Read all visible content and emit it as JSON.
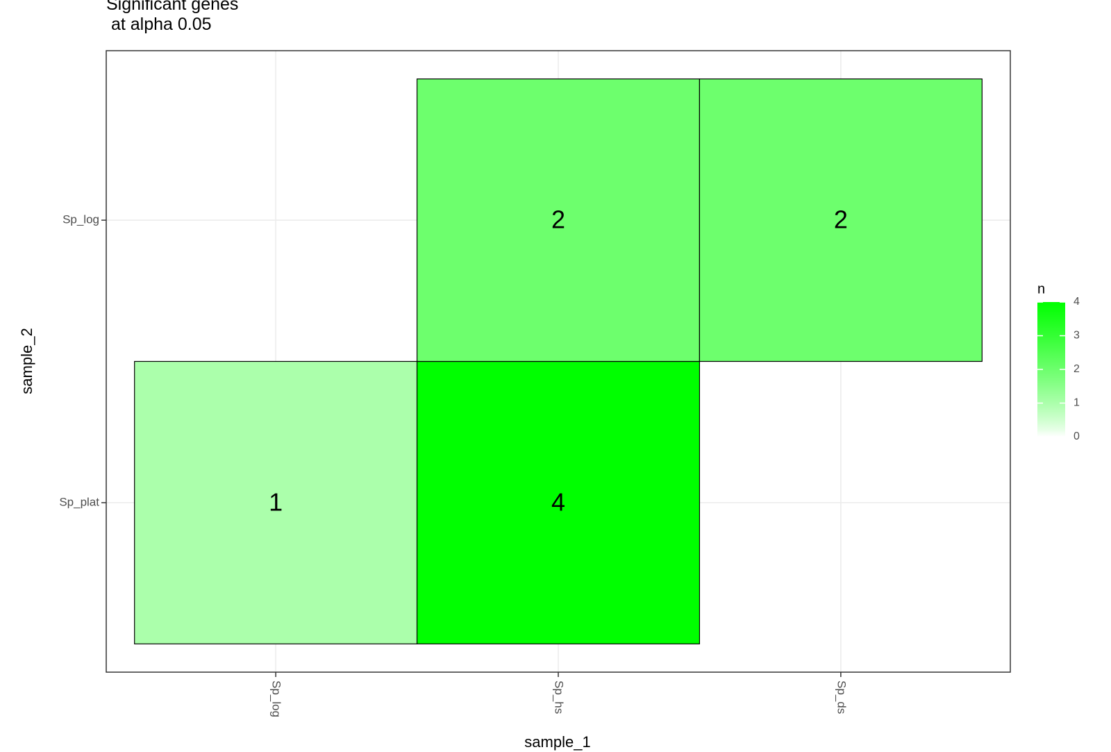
{
  "chart_data": {
    "type": "heatmap",
    "title": "Significant genes\n at alpha 0.05",
    "x_label": "sample_1",
    "y_label": "sample_2",
    "x_categories": [
      "Sp_log",
      "Sp_hs",
      "Sp_ds"
    ],
    "y_categories": [
      "Sp_plat",
      "Sp_log"
    ],
    "values": [
      [
        1,
        4,
        null
      ],
      [
        null,
        2,
        2
      ]
    ],
    "legend_title": "n",
    "colorlim": [
      0,
      4
    ],
    "colorticks": [
      0,
      1,
      2,
      3,
      4
    ],
    "color_low": "#ffffff",
    "color_high": "#00ff00",
    "grid": true
  }
}
